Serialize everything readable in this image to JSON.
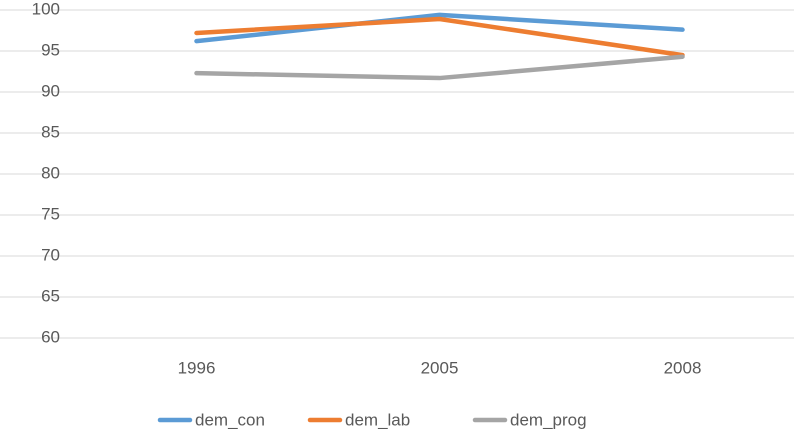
{
  "chart_data": {
    "type": "line",
    "categories": [
      "1996",
      "2005",
      "2008"
    ],
    "series": [
      {
        "name": "dem_con",
        "color": "#5b9bd5",
        "values": [
          96.2,
          99.4,
          97.6
        ]
      },
      {
        "name": "dem_lab",
        "color": "#ed7d31",
        "values": [
          97.2,
          98.9,
          94.5
        ]
      },
      {
        "name": "dem_prog",
        "color": "#a5a5a5",
        "values": [
          92.3,
          91.7,
          94.3
        ]
      }
    ],
    "ylim": [
      60,
      100
    ],
    "yticks": [
      60,
      65,
      70,
      75,
      80,
      85,
      90,
      95,
      100
    ],
    "grid": true,
    "legend": "bottom"
  }
}
